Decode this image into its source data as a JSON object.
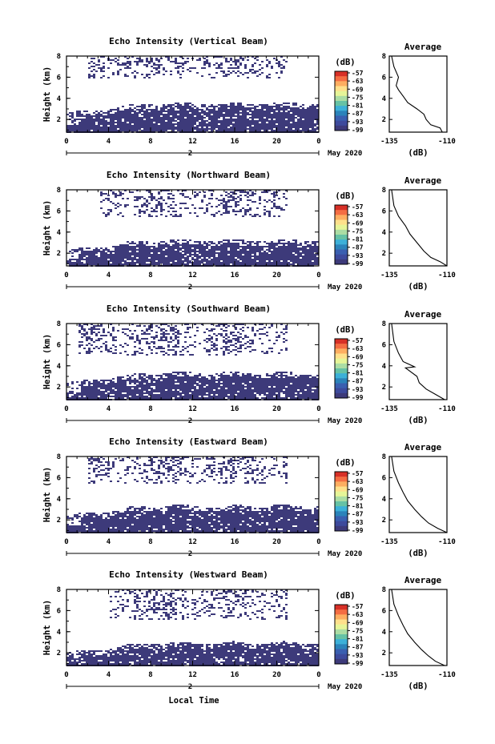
{
  "figure": {
    "xlabel": "Local Time",
    "date_label": "May 2020",
    "day_label": "2",
    "ylabel": "Height (km)",
    "colorbar_unit": "(dB)",
    "colorbar_ticks": [
      "-57",
      "-63",
      "-69",
      "-75",
      "-81",
      "-87",
      "-93",
      "-99"
    ],
    "colorbar_colors": [
      "#d73027",
      "#f46d43",
      "#fdae61",
      "#fee08b",
      "#e6f598",
      "#abdda4",
      "#66c2a5",
      "#3cb0d8",
      "#2b83ba",
      "#3a5fb0",
      "#3d4a9c",
      "#3d3a7a"
    ],
    "profile_title": "Average",
    "profile_xlabel": "(dB)",
    "profile_xticks": [
      "-135",
      "-110"
    ],
    "main_color": "#3d3a7a"
  },
  "chart_data": [
    {
      "type": "heatmap",
      "title": "Echo Intensity (Vertical Beam)",
      "xlabel": "Local Time",
      "ylabel": "Height (km)",
      "xlim": [
        0,
        24
      ],
      "ylim": [
        0.8,
        8
      ],
      "xticks": [
        "0",
        "4",
        "8",
        "12",
        "16",
        "20",
        "0"
      ],
      "yticks": [
        "2",
        "4",
        "6",
        "8"
      ],
      "color_range_db": [
        -99,
        -57
      ],
      "lower_echo_top_km": 3.6,
      "upper_echo_km": [
        6.0,
        8.0
      ],
      "upper_echo_start_h": 2,
      "profile": {
        "type": "line",
        "x_db": [
          -112,
          -113,
          -117,
          -119,
          -120,
          -123,
          -127,
          -129,
          -131,
          -132,
          -131,
          -133,
          -134
        ],
        "y_km": [
          0.8,
          1.2,
          1.5,
          2.0,
          2.5,
          3.0,
          3.6,
          4.2,
          4.8,
          5.2,
          6.0,
          7.0,
          8.0
        ],
        "xlim": [
          -135,
          -110
        ],
        "ylim": [
          0.8,
          8
        ]
      }
    },
    {
      "type": "heatmap",
      "title": "Echo Intensity (Northward Beam)",
      "xlabel": "Local Time",
      "ylabel": "Height (km)",
      "xlim": [
        0,
        24
      ],
      "ylim": [
        0.8,
        8
      ],
      "xticks": [
        "0",
        "4",
        "8",
        "12",
        "16",
        "20",
        "0"
      ],
      "yticks": [
        "2",
        "4",
        "6",
        "8"
      ],
      "color_range_db": [
        -99,
        -57
      ],
      "lower_echo_top_km": 3.3,
      "upper_echo_km": [
        5.5,
        8.0
      ],
      "upper_echo_start_h": 3,
      "profile": {
        "type": "line",
        "x_db": [
          -110,
          -113,
          -117,
          -120,
          -123,
          -126,
          -128,
          -131,
          -133,
          -134
        ],
        "y_km": [
          0.8,
          1.2,
          1.6,
          2.2,
          3.0,
          3.8,
          4.6,
          5.5,
          6.5,
          8.0
        ],
        "xlim": [
          -135,
          -110
        ],
        "ylim": [
          0.8,
          8
        ]
      }
    },
    {
      "type": "heatmap",
      "title": "Echo Intensity (Southward Beam)",
      "xlabel": "Local Time",
      "ylabel": "Height (km)",
      "xlim": [
        0,
        24
      ],
      "ylim": [
        0.8,
        8
      ],
      "xticks": [
        "0",
        "4",
        "8",
        "12",
        "16",
        "20",
        "0"
      ],
      "yticks": [
        "2",
        "4",
        "6",
        "8"
      ],
      "color_range_db": [
        -99,
        -57
      ],
      "lower_echo_top_km": 3.4,
      "upper_echo_km": [
        5.0,
        8.0
      ],
      "upper_echo_start_h": 1,
      "profile": {
        "type": "line",
        "x_db": [
          -111,
          -115,
          -119,
          -122,
          -123,
          -128,
          -124,
          -129,
          -131,
          -133,
          -134
        ],
        "y_km": [
          0.8,
          1.3,
          1.8,
          2.4,
          3.0,
          3.8,
          3.9,
          4.4,
          5.2,
          6.3,
          8.0
        ],
        "xlim": [
          -135,
          -110
        ],
        "ylim": [
          0.8,
          8
        ]
      }
    },
    {
      "type": "heatmap",
      "title": "Echo Intensity (Eastward Beam)",
      "xlabel": "Local Time",
      "ylabel": "Height (km)",
      "xlim": [
        0,
        24
      ],
      "ylim": [
        0.8,
        8
      ],
      "xticks": [
        "0",
        "4",
        "8",
        "12",
        "16",
        "20",
        "0"
      ],
      "yticks": [
        "2",
        "4",
        "6",
        "8"
      ],
      "color_range_db": [
        -99,
        -57
      ],
      "lower_echo_top_km": 3.4,
      "upper_echo_km": [
        5.5,
        8.0
      ],
      "upper_echo_start_h": 2,
      "profile": {
        "type": "line",
        "x_db": [
          -110,
          -114,
          -118,
          -121,
          -124,
          -127,
          -129,
          -131,
          -133,
          -134
        ],
        "y_km": [
          0.8,
          1.2,
          1.7,
          2.3,
          3.0,
          3.8,
          4.6,
          5.5,
          6.6,
          8.0
        ],
        "xlim": [
          -135,
          -110
        ],
        "ylim": [
          0.8,
          8
        ]
      }
    },
    {
      "type": "heatmap",
      "title": "Echo Intensity (Westward Beam)",
      "xlabel": "Local Time",
      "ylabel": "Height (km)",
      "xlim": [
        0,
        24
      ],
      "ylim": [
        0.8,
        8
      ],
      "xticks": [
        "0",
        "4",
        "8",
        "12",
        "16",
        "20",
        "0"
      ],
      "yticks": [
        "2",
        "4",
        "6",
        "8"
      ],
      "color_range_db": [
        -99,
        -57
      ],
      "lower_echo_top_km": 3.0,
      "upper_echo_km": [
        5.2,
        8.0
      ],
      "upper_echo_start_h": 4,
      "profile": {
        "type": "line",
        "x_db": [
          -111,
          -115,
          -118,
          -121,
          -124,
          -127,
          -129,
          -131,
          -133,
          -134
        ],
        "y_km": [
          0.8,
          1.2,
          1.7,
          2.3,
          3.0,
          3.8,
          4.6,
          5.5,
          6.6,
          8.0
        ],
        "xlim": [
          -135,
          -110
        ],
        "ylim": [
          0.8,
          8
        ]
      }
    }
  ]
}
